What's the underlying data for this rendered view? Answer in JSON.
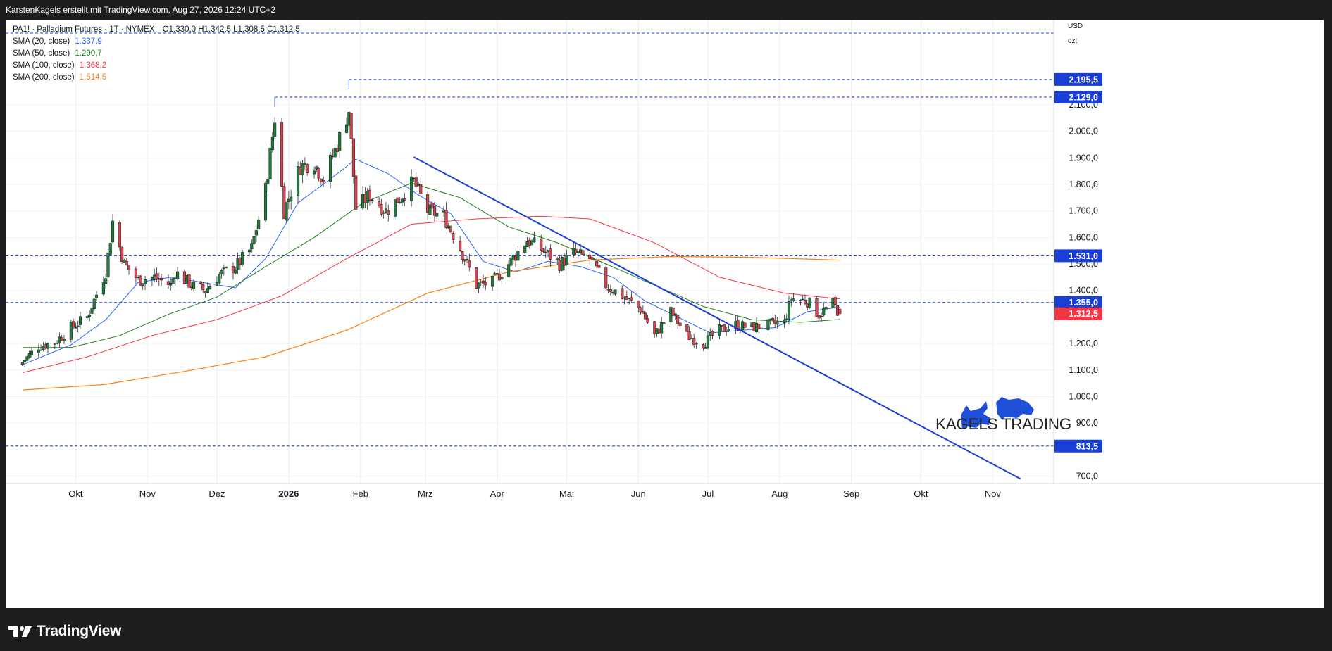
{
  "credit": "KarstenKagels erstellt mit TradingView.com, Aug 27, 2026 12:24 UTC+2",
  "legend": {
    "title": "PA1! · Palladium Futures · 1T · NYMEX",
    "ohlc": "O1.330,0  H1.342,5  L1.308,5  C1.312,5",
    "indicators": [
      {
        "label": "SMA (20, close)",
        "value": "1.337,9",
        "color": "#2962ff"
      },
      {
        "label": "SMA (50, close)",
        "value": "1.290,7",
        "color": "#1b7d1b"
      },
      {
        "label": "SMA (100, close)",
        "value": "1.368,2",
        "color": "#f23645"
      },
      {
        "label": "SMA (200, close)",
        "value": "1.514,5",
        "color": "#ff7f0e"
      }
    ]
  },
  "axis": {
    "currency": "USD",
    "unit": "ozt"
  },
  "watermark": {
    "text": "KAGELS TRADING"
  },
  "brand": "TradingView",
  "chart_data": {
    "type": "candlestick",
    "instrument": "PA1! · Palladium Futures",
    "timeframe": "1T",
    "exchange": "NYMEX",
    "ylim": [
      680,
      2240
    ],
    "yticks": [
      700,
      900,
      1000,
      1100,
      1200,
      1400,
      1500,
      1600,
      1700,
      1800,
      1900,
      2000,
      2100
    ],
    "ytick_labels": [
      "700,0",
      "900,0",
      "1.000,0",
      "1.100,0",
      "1.200,0",
      "1.400,0",
      "1.500,0",
      "1.600,0",
      "1.700,0",
      "1.800,0",
      "1.900,0",
      "2.000,0",
      "2.100,0"
    ],
    "xlabels": [
      {
        "label": "Okt",
        "bold": false
      },
      {
        "label": "Nov",
        "bold": false
      },
      {
        "label": "Dez",
        "bold": false
      },
      {
        "label": "2026",
        "bold": true
      },
      {
        "label": "Feb",
        "bold": false
      },
      {
        "label": "Mrz",
        "bold": false
      },
      {
        "label": "Apr",
        "bold": false
      },
      {
        "label": "Mai",
        "bold": false
      },
      {
        "label": "Jun",
        "bold": false
      },
      {
        "label": "Jul",
        "bold": false
      },
      {
        "label": "Aug",
        "bold": false
      },
      {
        "label": "Sep",
        "bold": false
      },
      {
        "label": "Okt",
        "bold": false
      },
      {
        "label": "Nov",
        "bold": false
      }
    ],
    "levels": [
      {
        "value": 2195.5,
        "label": "2.195,5",
        "line_from": "2026-01-27"
      },
      {
        "value": 2129.0,
        "label": "2.129,0",
        "line_from": "2025-12-26"
      },
      {
        "value": 1531.0,
        "label": "1.531,0",
        "line_from": "start"
      },
      {
        "value": 1355.0,
        "label": "1.355,0",
        "line_from": "start"
      },
      {
        "value": 813.5,
        "label": "813,5",
        "line_from": "start"
      }
    ],
    "top_dashed_level": 2540,
    "last_price": {
      "value": 1312.5,
      "label": "1.312,5",
      "color": "#f23645"
    },
    "trendline": {
      "start": {
        "date": "2026-02-24",
        "price": 1903
      },
      "end": {
        "date": "2026-11-13",
        "price": 690
      },
      "color": "#1a3fd6"
    },
    "anchors": [
      {
        "date": "2025-09-08",
        "price": 1130
      },
      {
        "date": "2025-09-15",
        "price": 1190
      },
      {
        "date": "2025-09-22",
        "price": 1205
      },
      {
        "date": "2025-09-29",
        "price": 1260
      },
      {
        "date": "2025-10-06",
        "price": 1300
      },
      {
        "date": "2025-10-14",
        "price": 1470
      },
      {
        "date": "2025-10-17",
        "price": 1660
      },
      {
        "date": "2025-10-22",
        "price": 1500
      },
      {
        "date": "2025-10-28",
        "price": 1440
      },
      {
        "date": "2025-11-04",
        "price": 1450
      },
      {
        "date": "2025-11-11",
        "price": 1420
      },
      {
        "date": "2025-11-13",
        "price": 1470
      },
      {
        "date": "2025-11-20",
        "price": 1420
      },
      {
        "date": "2025-11-26",
        "price": 1400
      },
      {
        "date": "2025-12-02",
        "price": 1460
      },
      {
        "date": "2025-12-09",
        "price": 1490
      },
      {
        "date": "2025-12-16",
        "price": 1560
      },
      {
        "date": "2025-12-22",
        "price": 1780
      },
      {
        "date": "2025-12-26",
        "price": 2050
      },
      {
        "date": "2025-12-30",
        "price": 1700
      },
      {
        "date": "2026-01-06",
        "price": 1870
      },
      {
        "date": "2026-01-12",
        "price": 1880
      },
      {
        "date": "2026-01-16",
        "price": 1820
      },
      {
        "date": "2026-01-22",
        "price": 1950
      },
      {
        "date": "2026-01-27",
        "price": 2080
      },
      {
        "date": "2026-01-30",
        "price": 1710
      },
      {
        "date": "2026-02-05",
        "price": 1760
      },
      {
        "date": "2026-02-12",
        "price": 1700
      },
      {
        "date": "2026-02-18",
        "price": 1750
      },
      {
        "date": "2026-02-24",
        "price": 1810
      },
      {
        "date": "2026-03-02",
        "price": 1700
      },
      {
        "date": "2026-03-09",
        "price": 1680
      },
      {
        "date": "2026-03-16",
        "price": 1560
      },
      {
        "date": "2026-03-23",
        "price": 1420
      },
      {
        "date": "2026-03-30",
        "price": 1430
      },
      {
        "date": "2026-04-06",
        "price": 1500
      },
      {
        "date": "2026-04-14",
        "price": 1590
      },
      {
        "date": "2026-04-21",
        "price": 1550
      },
      {
        "date": "2026-04-28",
        "price": 1500
      },
      {
        "date": "2026-05-04",
        "price": 1540
      },
      {
        "date": "2026-05-11",
        "price": 1520
      },
      {
        "date": "2026-05-18",
        "price": 1420
      },
      {
        "date": "2026-05-25",
        "price": 1380
      },
      {
        "date": "2026-06-02",
        "price": 1330
      },
      {
        "date": "2026-06-08",
        "price": 1230
      },
      {
        "date": "2026-06-15",
        "price": 1320
      },
      {
        "date": "2026-06-22",
        "price": 1230
      },
      {
        "date": "2026-06-29",
        "price": 1200
      },
      {
        "date": "2026-07-06",
        "price": 1250
      },
      {
        "date": "2026-07-13",
        "price": 1270
      },
      {
        "date": "2026-07-20",
        "price": 1260
      },
      {
        "date": "2026-07-27",
        "price": 1270
      },
      {
        "date": "2026-08-03",
        "price": 1280
      },
      {
        "date": "2026-08-06",
        "price": 1370
      },
      {
        "date": "2026-08-13",
        "price": 1360
      },
      {
        "date": "2026-08-18",
        "price": 1310
      },
      {
        "date": "2026-08-24",
        "price": 1350
      },
      {
        "date": "2026-08-27",
        "price": 1312.5
      }
    ],
    "sma": [
      {
        "name": "SMA (20, close)",
        "color": "#2962ff",
        "width": 1,
        "points": [
          {
            "date": "2025-09-08",
            "price": 1120
          },
          {
            "date": "2025-09-29",
            "price": 1195
          },
          {
            "date": "2025-10-14",
            "price": 1290
          },
          {
            "date": "2025-10-28",
            "price": 1430
          },
          {
            "date": "2025-11-11",
            "price": 1450
          },
          {
            "date": "2025-11-25",
            "price": 1430
          },
          {
            "date": "2025-12-09",
            "price": 1410
          },
          {
            "date": "2025-12-22",
            "price": 1520
          },
          {
            "date": "2026-01-05",
            "price": 1730
          },
          {
            "date": "2026-01-19",
            "price": 1820
          },
          {
            "date": "2026-01-30",
            "price": 1895
          },
          {
            "date": "2026-02-13",
            "price": 1840
          },
          {
            "date": "2026-02-26",
            "price": 1760
          },
          {
            "date": "2026-03-12",
            "price": 1690
          },
          {
            "date": "2026-03-26",
            "price": 1510
          },
          {
            "date": "2026-04-09",
            "price": 1470
          },
          {
            "date": "2026-04-23",
            "price": 1510
          },
          {
            "date": "2026-05-07",
            "price": 1490
          },
          {
            "date": "2026-05-21",
            "price": 1450
          },
          {
            "date": "2026-06-04",
            "price": 1360
          },
          {
            "date": "2026-06-18",
            "price": 1300
          },
          {
            "date": "2026-07-02",
            "price": 1240
          },
          {
            "date": "2026-07-16",
            "price": 1250
          },
          {
            "date": "2026-07-30",
            "price": 1260
          },
          {
            "date": "2026-08-13",
            "price": 1320
          },
          {
            "date": "2026-08-27",
            "price": 1337.9
          }
        ]
      },
      {
        "name": "SMA (50, close)",
        "color": "#1b7d1b",
        "width": 1,
        "points": [
          {
            "date": "2025-09-08",
            "price": 1185
          },
          {
            "date": "2025-09-29",
            "price": 1185
          },
          {
            "date": "2025-10-20",
            "price": 1230
          },
          {
            "date": "2025-11-10",
            "price": 1310
          },
          {
            "date": "2025-12-01",
            "price": 1375
          },
          {
            "date": "2025-12-22",
            "price": 1490
          },
          {
            "date": "2026-01-12",
            "price": 1600
          },
          {
            "date": "2026-02-02",
            "price": 1730
          },
          {
            "date": "2026-02-23",
            "price": 1805
          },
          {
            "date": "2026-03-16",
            "price": 1750
          },
          {
            "date": "2026-04-06",
            "price": 1640
          },
          {
            "date": "2026-04-27",
            "price": 1580
          },
          {
            "date": "2026-05-18",
            "price": 1500
          },
          {
            "date": "2026-06-08",
            "price": 1420
          },
          {
            "date": "2026-06-29",
            "price": 1340
          },
          {
            "date": "2026-07-20",
            "price": 1290
          },
          {
            "date": "2026-08-10",
            "price": 1280
          },
          {
            "date": "2026-08-27",
            "price": 1290.7
          }
        ]
      },
      {
        "name": "SMA (100, close)",
        "color": "#f23645",
        "width": 1,
        "points": [
          {
            "date": "2025-09-08",
            "price": 1090
          },
          {
            "date": "2025-10-06",
            "price": 1150
          },
          {
            "date": "2025-11-03",
            "price": 1230
          },
          {
            "date": "2025-12-01",
            "price": 1290
          },
          {
            "date": "2025-12-29",
            "price": 1380
          },
          {
            "date": "2026-01-26",
            "price": 1520
          },
          {
            "date": "2026-02-23",
            "price": 1650
          },
          {
            "date": "2026-03-23",
            "price": 1670
          },
          {
            "date": "2026-04-20",
            "price": 1680
          },
          {
            "date": "2026-05-11",
            "price": 1670
          },
          {
            "date": "2026-06-08",
            "price": 1580
          },
          {
            "date": "2026-07-06",
            "price": 1450
          },
          {
            "date": "2026-08-03",
            "price": 1390
          },
          {
            "date": "2026-08-27",
            "price": 1368.2
          }
        ]
      },
      {
        "name": "SMA (200, close)",
        "color": "#ff7f0e",
        "width": 1.2,
        "points": [
          {
            "date": "2025-09-08",
            "price": 1025
          },
          {
            "date": "2025-10-13",
            "price": 1045
          },
          {
            "date": "2025-11-17",
            "price": 1095
          },
          {
            "date": "2025-12-22",
            "price": 1150
          },
          {
            "date": "2026-01-26",
            "price": 1250
          },
          {
            "date": "2026-03-02",
            "price": 1390
          },
          {
            "date": "2026-04-06",
            "price": 1470
          },
          {
            "date": "2026-05-11",
            "price": 1515
          },
          {
            "date": "2026-06-15",
            "price": 1528
          },
          {
            "date": "2026-07-20",
            "price": 1525
          },
          {
            "date": "2026-08-27",
            "price": 1514.5
          }
        ]
      }
    ]
  }
}
